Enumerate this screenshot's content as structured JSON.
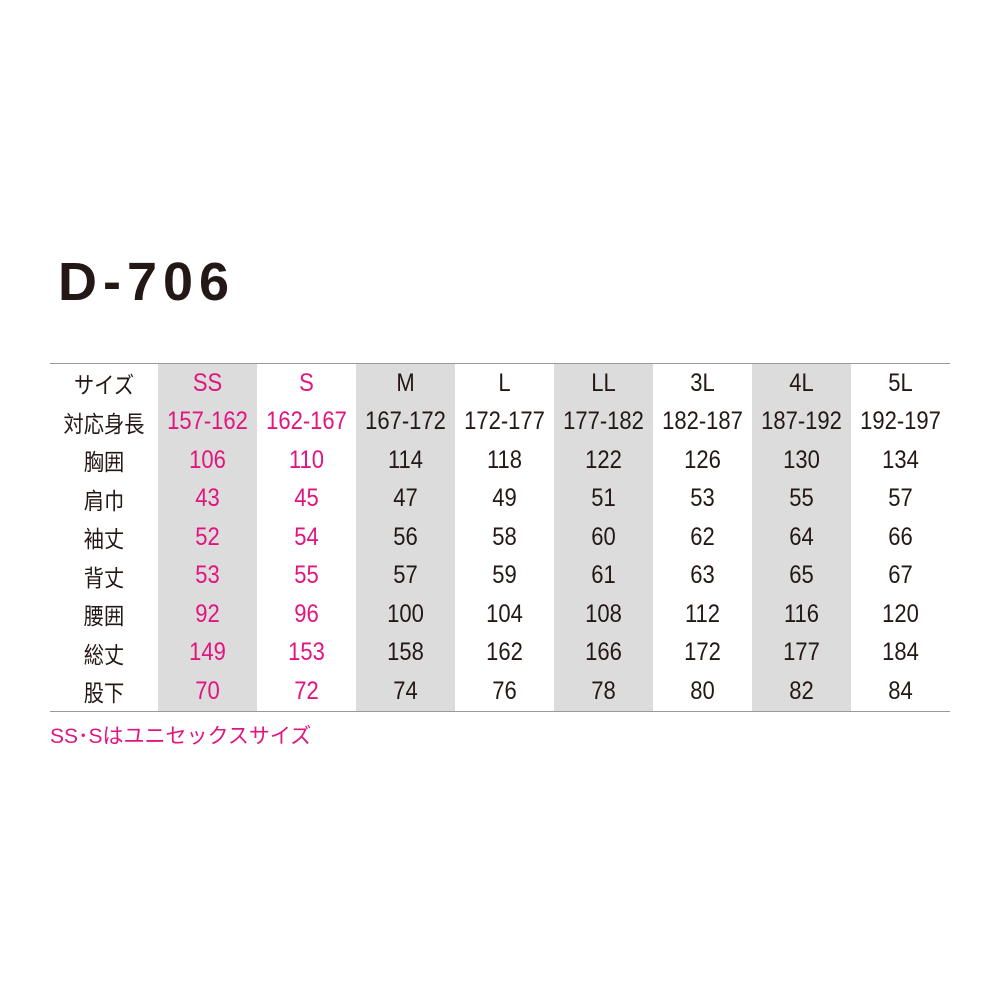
{
  "title": "D-706",
  "table": {
    "columns": [
      "SS",
      "S",
      "M",
      "L",
      "LL",
      "3L",
      "4L",
      "5L"
    ],
    "highlight_columns": [
      "SS",
      "S"
    ],
    "shaded_columns": [
      "SS",
      "M",
      "LL",
      "4L"
    ],
    "colors": {
      "highlight": "#e2147f",
      "shade": "#dcdcdc",
      "text": "#231815"
    },
    "header_label": "サイズ",
    "rows": [
      {
        "label": "対応身長",
        "values": [
          "157-162",
          "162-167",
          "167-172",
          "172-177",
          "177-182",
          "182-187",
          "187-192",
          "192-197"
        ]
      },
      {
        "label": "胸囲",
        "values": [
          "106",
          "110",
          "114",
          "118",
          "122",
          "126",
          "130",
          "134"
        ]
      },
      {
        "label": "肩巾",
        "values": [
          "43",
          "45",
          "47",
          "49",
          "51",
          "53",
          "55",
          "57"
        ]
      },
      {
        "label": "袖丈",
        "values": [
          "52",
          "54",
          "56",
          "58",
          "60",
          "62",
          "64",
          "66"
        ]
      },
      {
        "label": "背丈",
        "values": [
          "53",
          "55",
          "57",
          "59",
          "61",
          "63",
          "65",
          "67"
        ]
      },
      {
        "label": "腰囲",
        "values": [
          "92",
          "96",
          "100",
          "104",
          "108",
          "112",
          "116",
          "120"
        ]
      },
      {
        "label": "総丈",
        "values": [
          "149",
          "153",
          "158",
          "162",
          "166",
          "172",
          "177",
          "184"
        ]
      },
      {
        "label": "股下",
        "values": [
          "70",
          "72",
          "74",
          "76",
          "78",
          "80",
          "82",
          "84"
        ]
      }
    ]
  },
  "note": "SS･Sはユニセックスサイズ"
}
